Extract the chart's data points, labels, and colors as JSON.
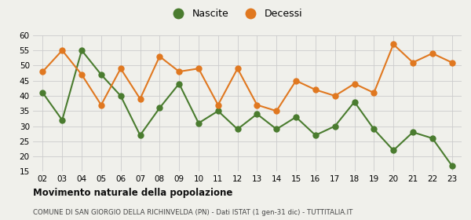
{
  "years": [
    "02",
    "03",
    "04",
    "05",
    "06",
    "07",
    "08",
    "09",
    "10",
    "11",
    "12",
    "13",
    "14",
    "15",
    "16",
    "17",
    "18",
    "19",
    "20",
    "21",
    "22",
    "23"
  ],
  "nascite": [
    41,
    32,
    55,
    47,
    40,
    27,
    36,
    44,
    31,
    35,
    29,
    34,
    29,
    33,
    27,
    30,
    38,
    29,
    22,
    28,
    26,
    17
  ],
  "decessi": [
    48,
    55,
    47,
    37,
    49,
    39,
    53,
    48,
    49,
    37,
    49,
    37,
    35,
    45,
    42,
    40,
    44,
    41,
    57,
    51,
    54,
    51
  ],
  "nascite_color": "#4a7c2f",
  "decessi_color": "#e07820",
  "bg_color": "#f0f0eb",
  "grid_color": "#cccccc",
  "ylim": [
    15,
    60
  ],
  "yticks": [
    15,
    20,
    25,
    30,
    35,
    40,
    45,
    50,
    55,
    60
  ],
  "title": "Movimento naturale della popolazione",
  "subtitle": "COMUNE DI SAN GIORGIO DELLA RICHINVELDA (PN) - Dati ISTAT (1 gen-31 dic) - TUTTITALIA.IT",
  "legend_nascite": "Nascite",
  "legend_decessi": "Decessi",
  "marker_size": 5,
  "line_width": 1.5
}
